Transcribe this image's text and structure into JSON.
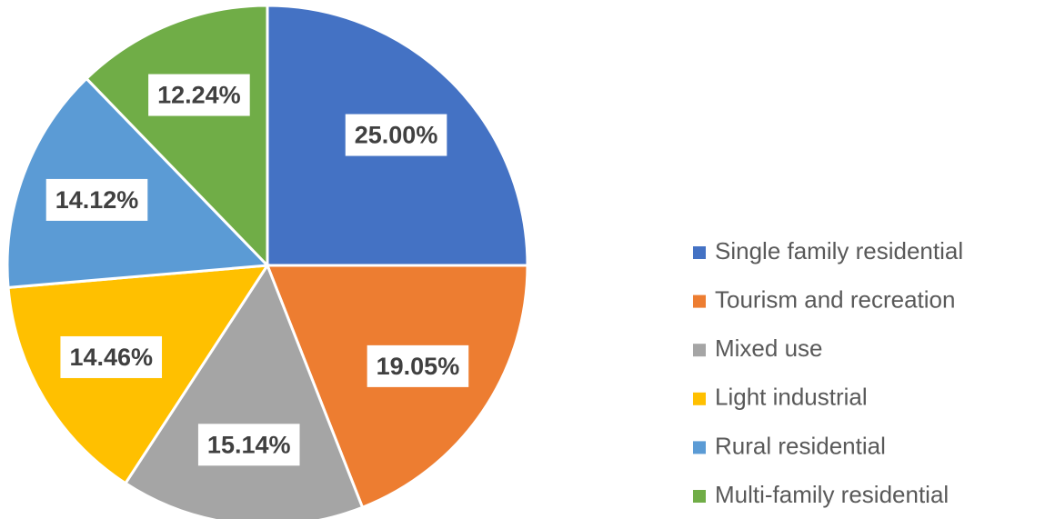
{
  "chart_data": {
    "type": "pie",
    "categories": [
      "Single family residential",
      "Tourism and recreation",
      "Mixed use",
      "Light industrial",
      "Rural residential",
      "Multi-family residential"
    ],
    "values": [
      25.0,
      19.05,
      15.14,
      14.46,
      14.12,
      12.24
    ],
    "value_labels": [
      "25.00%",
      "19.05%",
      "15.14%",
      "14.46%",
      "14.12%",
      "12.24%"
    ],
    "colors": [
      "#4472c4",
      "#ed7d31",
      "#a5a5a5",
      "#ffc000",
      "#5b9bd5",
      "#70ad47"
    ],
    "legend": "right"
  }
}
